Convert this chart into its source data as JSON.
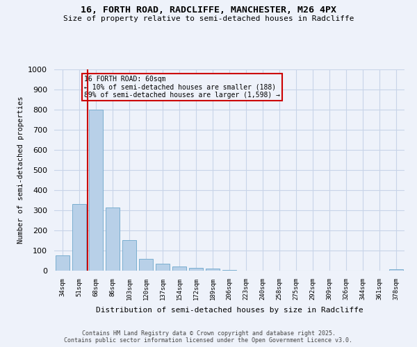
{
  "title1": "16, FORTH ROAD, RADCLIFFE, MANCHESTER, M26 4PX",
  "title2": "Size of property relative to semi-detached houses in Radcliffe",
  "xlabel": "Distribution of semi-detached houses by size in Radcliffe",
  "ylabel": "Number of semi-detached properties",
  "categories": [
    "34sqm",
    "51sqm",
    "68sqm",
    "86sqm",
    "103sqm",
    "120sqm",
    "137sqm",
    "154sqm",
    "172sqm",
    "189sqm",
    "206sqm",
    "223sqm",
    "240sqm",
    "258sqm",
    "275sqm",
    "292sqm",
    "309sqm",
    "326sqm",
    "344sqm",
    "361sqm",
    "378sqm"
  ],
  "values": [
    75,
    330,
    800,
    315,
    152,
    57,
    33,
    22,
    15,
    10,
    5,
    0,
    0,
    0,
    0,
    0,
    0,
    0,
    0,
    0,
    8
  ],
  "bar_color": "#b8d0e8",
  "bar_edge_color": "#7aaed0",
  "grid_color": "#c8d4e8",
  "annotation_text_title": "16 FORTH ROAD: 60sqm",
  "annotation_text_line2": "← 10% of semi-detached houses are smaller (188)",
  "annotation_text_line3": "89% of semi-detached houses are larger (1,598) →",
  "annotation_box_color": "#cc0000",
  "footer1": "Contains HM Land Registry data © Crown copyright and database right 2025.",
  "footer2": "Contains public sector information licensed under the Open Government Licence v3.0.",
  "ylim": [
    0,
    1000
  ],
  "yticks": [
    0,
    100,
    200,
    300,
    400,
    500,
    600,
    700,
    800,
    900,
    1000
  ],
  "background_color": "#eef2fa",
  "vline_x": 1.5,
  "vline_color": "#cc0000"
}
